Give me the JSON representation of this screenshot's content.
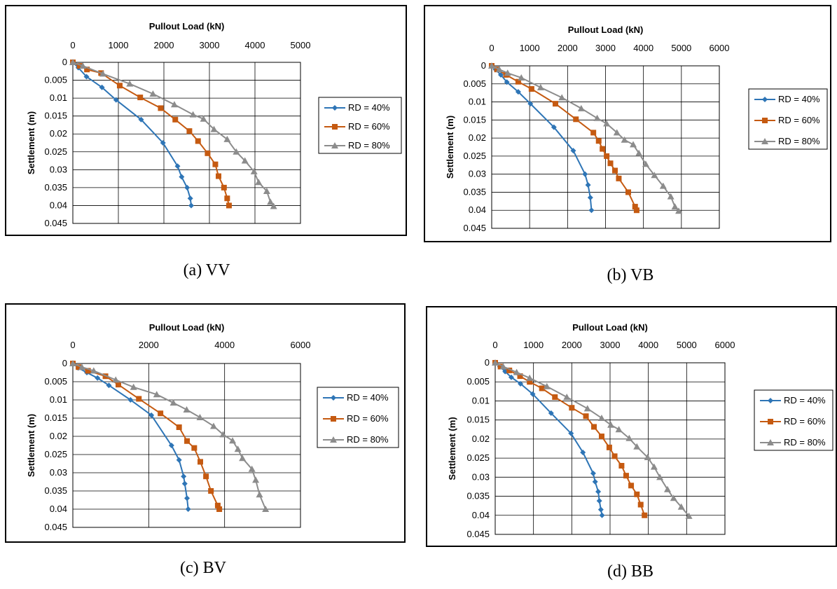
{
  "chart_data": [
    {
      "id": "a",
      "type": "line",
      "caption": "(a) VV",
      "xlabel": "Pullout Load (kN)",
      "ylabel": "Settlement (m)",
      "xlim": [
        0,
        5000
      ],
      "ylim": [
        0,
        0.045
      ],
      "xticks": [
        "0",
        "1000",
        "2000",
        "3000",
        "4000",
        "5000"
      ],
      "yticks": [
        "0",
        "0.005",
        "0.01",
        "0.015",
        "0.02",
        "0.025",
        "0.03",
        "0.035",
        "0.04",
        "0.045"
      ],
      "grid": true,
      "legend_position": "right",
      "series": [
        {
          "name": "RD = 40%",
          "color": "#2E75B6",
          "marker": "diamond",
          "points": [
            [
              0,
              0
            ],
            [
              120,
              0.0015
            ],
            [
              300,
              0.004
            ],
            [
              640,
              0.007
            ],
            [
              950,
              0.0105
            ],
            [
              1500,
              0.016
            ],
            [
              1980,
              0.0225
            ],
            [
              2300,
              0.029
            ],
            [
              2390,
              0.032
            ],
            [
              2510,
              0.035
            ],
            [
              2580,
              0.038
            ],
            [
              2600,
              0.04
            ]
          ]
        },
        {
          "name": "RD = 60%",
          "color": "#C55A11",
          "marker": "square",
          "points": [
            [
              0,
              0
            ],
            [
              150,
              0.001
            ],
            [
              310,
              0.002
            ],
            [
              620,
              0.003
            ],
            [
              1030,
              0.0065
            ],
            [
              1480,
              0.0098
            ],
            [
              1930,
              0.0128
            ],
            [
              2250,
              0.016
            ],
            [
              2560,
              0.0192
            ],
            [
              2750,
              0.022
            ],
            [
              2960,
              0.0254
            ],
            [
              3130,
              0.0285
            ],
            [
              3200,
              0.0318
            ],
            [
              3320,
              0.035
            ],
            [
              3390,
              0.038
            ],
            [
              3430,
              0.04
            ]
          ]
        },
        {
          "name": "RD = 80%",
          "color": "#8C8C8C",
          "marker": "triangle",
          "points": [
            [
              0,
              0
            ],
            [
              220,
              0.001
            ],
            [
              660,
              0.0032
            ],
            [
              1250,
              0.006
            ],
            [
              1760,
              0.0088
            ],
            [
              2230,
              0.0118
            ],
            [
              2640,
              0.0146
            ],
            [
              2870,
              0.0158
            ],
            [
              3100,
              0.0187
            ],
            [
              3390,
              0.0215
            ],
            [
              3590,
              0.025
            ],
            [
              3780,
              0.0275
            ],
            [
              3980,
              0.0305
            ],
            [
              4080,
              0.0335
            ],
            [
              4260,
              0.036
            ],
            [
              4340,
              0.039
            ],
            [
              4410,
              0.0402
            ]
          ]
        }
      ]
    },
    {
      "id": "b",
      "type": "line",
      "caption": "(b) VB",
      "xlabel": "Pullout Load (kN)",
      "ylabel": "Settlement (m)",
      "xlim": [
        0,
        6000
      ],
      "ylim": [
        0,
        0.045
      ],
      "xticks": [
        "0",
        "1000",
        "2000",
        "3000",
        "4000",
        "5000",
        "6000"
      ],
      "yticks": [
        "0",
        "0.005",
        "0.01",
        "0.015",
        "0.02",
        "0.025",
        "0.03",
        "0.035",
        "0.04",
        "0.045"
      ],
      "grid": true,
      "legend_position": "right",
      "series": [
        {
          "name": "RD = 40%",
          "color": "#2E75B6",
          "marker": "diamond",
          "points": [
            [
              0,
              0
            ],
            [
              100,
              0.001
            ],
            [
              240,
              0.0025
            ],
            [
              400,
              0.0045
            ],
            [
              700,
              0.0072
            ],
            [
              1020,
              0.0105
            ],
            [
              1640,
              0.017
            ],
            [
              2150,
              0.0235
            ],
            [
              2460,
              0.03
            ],
            [
              2540,
              0.033
            ],
            [
              2600,
              0.0365
            ],
            [
              2630,
              0.04
            ]
          ]
        },
        {
          "name": "RD = 60%",
          "color": "#C55A11",
          "marker": "square",
          "points": [
            [
              0,
              0
            ],
            [
              140,
              0.001
            ],
            [
              380,
              0.0025
            ],
            [
              700,
              0.0044
            ],
            [
              1050,
              0.0064
            ],
            [
              1680,
              0.0105
            ],
            [
              2220,
              0.0148
            ],
            [
              2680,
              0.0185
            ],
            [
              2820,
              0.0208
            ],
            [
              2920,
              0.023
            ],
            [
              3030,
              0.025
            ],
            [
              3130,
              0.027
            ],
            [
              3250,
              0.029
            ],
            [
              3350,
              0.0312
            ],
            [
              3600,
              0.035
            ],
            [
              3780,
              0.039
            ],
            [
              3820,
              0.04
            ]
          ]
        },
        {
          "name": "RD = 80%",
          "color": "#8C8C8C",
          "marker": "triangle",
          "points": [
            [
              0,
              0
            ],
            [
              200,
              0.001
            ],
            [
              420,
              0.002
            ],
            [
              780,
              0.0033
            ],
            [
              1290,
              0.006
            ],
            [
              1850,
              0.0088
            ],
            [
              2360,
              0.0118
            ],
            [
              2780,
              0.0145
            ],
            [
              3030,
              0.016
            ],
            [
              3300,
              0.0185
            ],
            [
              3500,
              0.0205
            ],
            [
              3730,
              0.0218
            ],
            [
              3880,
              0.0242
            ],
            [
              4060,
              0.0272
            ],
            [
              4290,
              0.0303
            ],
            [
              4520,
              0.0333
            ],
            [
              4720,
              0.0362
            ],
            [
              4830,
              0.039
            ],
            [
              4930,
              0.0402
            ]
          ]
        }
      ]
    },
    {
      "id": "c",
      "type": "line",
      "caption": "(c) BV",
      "xlabel": "Pullout Load (kN)",
      "ylabel": "Settlement (m)",
      "xlim": [
        0,
        6000
      ],
      "ylim": [
        0,
        0.045
      ],
      "xticks": [
        "0",
        "2000",
        "4000",
        "6000"
      ],
      "yticks": [
        "0",
        "0.005",
        "0.01",
        "0.015",
        "0.02",
        "0.025",
        "0.03",
        "0.035",
        "0.04",
        "0.045"
      ],
      "grid": true,
      "legend_position": "right",
      "series": [
        {
          "name": "RD = 40%",
          "color": "#2E75B6",
          "marker": "diamond",
          "points": [
            [
              0,
              0
            ],
            [
              140,
              0.0012
            ],
            [
              370,
              0.0025
            ],
            [
              650,
              0.004
            ],
            [
              950,
              0.006
            ],
            [
              1520,
              0.01
            ],
            [
              2070,
              0.0142
            ],
            [
              2600,
              0.0225
            ],
            [
              2800,
              0.0265
            ],
            [
              2920,
              0.031
            ],
            [
              2950,
              0.033
            ],
            [
              3010,
              0.037
            ],
            [
              3040,
              0.04
            ]
          ]
        },
        {
          "name": "RD = 60%",
          "color": "#C55A11",
          "marker": "square",
          "points": [
            [
              0,
              0
            ],
            [
              150,
              0.001
            ],
            [
              400,
              0.002
            ],
            [
              860,
              0.0035
            ],
            [
              1200,
              0.0058
            ],
            [
              1740,
              0.0097
            ],
            [
              2310,
              0.0137
            ],
            [
              2800,
              0.0175
            ],
            [
              3010,
              0.0213
            ],
            [
              3200,
              0.0232
            ],
            [
              3360,
              0.027
            ],
            [
              3510,
              0.031
            ],
            [
              3640,
              0.035
            ],
            [
              3820,
              0.039
            ],
            [
              3860,
              0.04
            ]
          ]
        },
        {
          "name": "RD = 80%",
          "color": "#8C8C8C",
          "marker": "triangle",
          "points": [
            [
              0,
              0
            ],
            [
              240,
              0.001
            ],
            [
              550,
              0.002
            ],
            [
              1130,
              0.0045
            ],
            [
              1600,
              0.0065
            ],
            [
              2210,
              0.0085
            ],
            [
              2650,
              0.0108
            ],
            [
              3000,
              0.0127
            ],
            [
              3350,
              0.0148
            ],
            [
              3710,
              0.0172
            ],
            [
              3960,
              0.0195
            ],
            [
              4210,
              0.0212
            ],
            [
              4350,
              0.0235
            ],
            [
              4470,
              0.026
            ],
            [
              4720,
              0.029
            ],
            [
              4820,
              0.032
            ],
            [
              4920,
              0.036
            ],
            [
              5080,
              0.04
            ]
          ]
        }
      ]
    },
    {
      "id": "d",
      "type": "line",
      "caption": "(d)  BB",
      "xlabel": "Pullout Load (kN)",
      "ylabel": "Settlement (m)",
      "xlim": [
        0,
        6000
      ],
      "ylim": [
        0,
        0.045
      ],
      "xticks": [
        "0",
        "1000",
        "2000",
        "3000",
        "4000",
        "5000",
        "6000"
      ],
      "yticks": [
        "0",
        "0.005",
        "0.01",
        "0.015",
        "0.02",
        "0.025",
        "0.03",
        "0.035",
        "0.04",
        "0.045"
      ],
      "grid": true,
      "legend_position": "right",
      "series": [
        {
          "name": "RD = 40%",
          "color": "#2E75B6",
          "marker": "diamond",
          "points": [
            [
              0,
              0
            ],
            [
              120,
              0.001
            ],
            [
              260,
              0.0023
            ],
            [
              420,
              0.0038
            ],
            [
              660,
              0.0055
            ],
            [
              980,
              0.0082
            ],
            [
              1460,
              0.0132
            ],
            [
              1980,
              0.0185
            ],
            [
              2290,
              0.0235
            ],
            [
              2560,
              0.029
            ],
            [
              2610,
              0.0312
            ],
            [
              2690,
              0.0338
            ],
            [
              2720,
              0.0362
            ],
            [
              2760,
              0.0385
            ],
            [
              2790,
              0.04
            ]
          ]
        },
        {
          "name": "RD = 60%",
          "color": "#C55A11",
          "marker": "square",
          "points": [
            [
              0,
              0
            ],
            [
              140,
              0.001
            ],
            [
              370,
              0.002
            ],
            [
              650,
              0.0035
            ],
            [
              900,
              0.005
            ],
            [
              1220,
              0.0067
            ],
            [
              1560,
              0.009
            ],
            [
              2000,
              0.0118
            ],
            [
              2370,
              0.014
            ],
            [
              2580,
              0.0168
            ],
            [
              2780,
              0.0193
            ],
            [
              2980,
              0.0222
            ],
            [
              3120,
              0.0245
            ],
            [
              3300,
              0.027
            ],
            [
              3420,
              0.0296
            ],
            [
              3550,
              0.0322
            ],
            [
              3700,
              0.0345
            ],
            [
              3800,
              0.0372
            ],
            [
              3900,
              0.04
            ]
          ]
        },
        {
          "name": "RD = 80%",
          "color": "#8C8C8C",
          "marker": "triangle",
          "points": [
            [
              0,
              0
            ],
            [
              210,
              0.001
            ],
            [
              560,
              0.0025
            ],
            [
              900,
              0.004
            ],
            [
              1350,
              0.0062
            ],
            [
              1870,
              0.009
            ],
            [
              2410,
              0.012
            ],
            [
              2780,
              0.0145
            ],
            [
              3020,
              0.0163
            ],
            [
              3230,
              0.0175
            ],
            [
              3500,
              0.0198
            ],
            [
              3700,
              0.022
            ],
            [
              3980,
              0.0248
            ],
            [
              4150,
              0.0273
            ],
            [
              4300,
              0.03
            ],
            [
              4500,
              0.0332
            ],
            [
              4660,
              0.0355
            ],
            [
              4860,
              0.0378
            ],
            [
              5060,
              0.0402
            ]
          ]
        }
      ]
    }
  ]
}
